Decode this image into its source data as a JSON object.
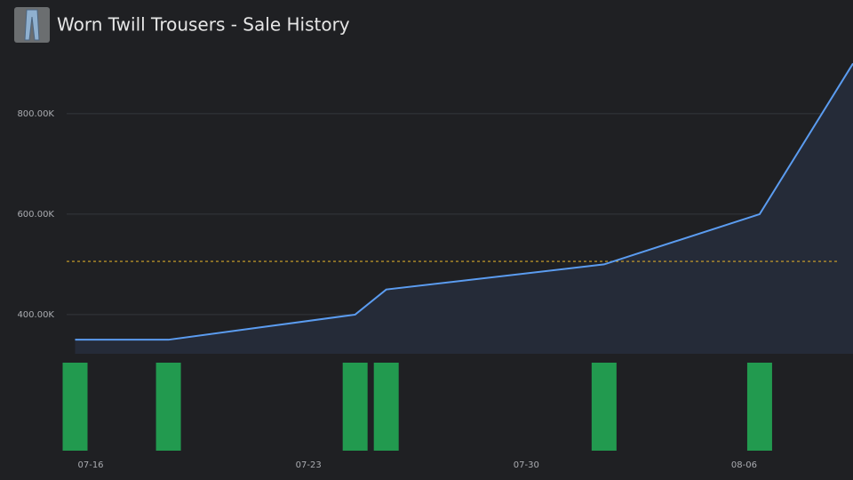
{
  "chart_data": {
    "type": "line",
    "title": "Worn Twill Trousers - Sale History",
    "x": [
      -0.5,
      2.5,
      8.5,
      9.5,
      16.5,
      21.5,
      24.5
    ],
    "xlim": [
      -1,
      24.5
    ],
    "xticks": [
      {
        "value": 0,
        "label": "07-16"
      },
      {
        "value": 7,
        "label": "07-23"
      },
      {
        "value": 14,
        "label": "07-30"
      },
      {
        "value": 21,
        "label": "08-06"
      }
    ],
    "values": [
      350000,
      350000,
      400000,
      450000,
      500000,
      600000,
      900000
    ],
    "color": "#5b9cf0",
    "area_color": "#252b38",
    "ylim": [
      322000,
      922000
    ],
    "yticks": [
      {
        "value": 400000,
        "label": "400.00K"
      },
      {
        "value": 600000,
        "label": "600.00K"
      },
      {
        "value": 800000,
        "label": "800.00K"
      }
    ],
    "grid": true,
    "reference_line": {
      "value": 506000,
      "color": "#d4a62a"
    },
    "volume": {
      "values": [
        1,
        1,
        1,
        1,
        1,
        1,
        null
      ],
      "color": "#229a4f",
      "ylim": [
        0,
        1
      ]
    }
  }
}
